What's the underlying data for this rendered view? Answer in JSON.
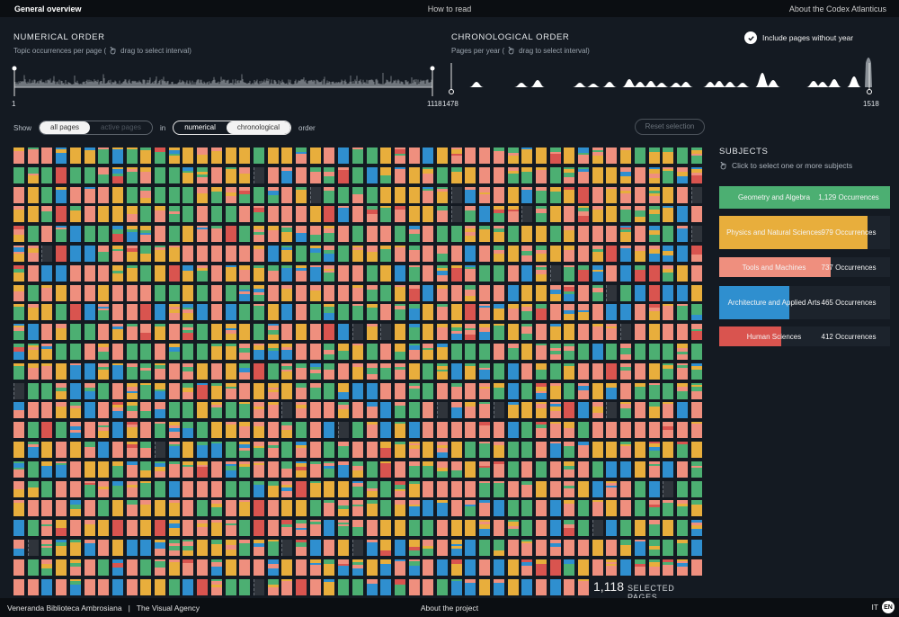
{
  "nav": {
    "left": "General overview",
    "center": "How to read",
    "right": "About the Codex Atlanticus"
  },
  "numerical": {
    "title": "NUMERICAL ORDER",
    "subtitle": "Topic occurrences per page (",
    "drag_hint": "drag to select interval)",
    "start_label": "1",
    "end_label": "1118"
  },
  "chronological": {
    "title": "CHRONOLOGICAL ORDER",
    "subtitle": "Pages per year (",
    "drag_hint": "drag to select interval)",
    "start_label": "1478",
    "end_label": "1518"
  },
  "include_toggle": {
    "label": "Include pages without year",
    "checked": true
  },
  "controls": {
    "show_label": "Show",
    "all_pages": "all pages",
    "active_pages": "active pages",
    "in_label": "in",
    "numerical": "numerical",
    "chronological": "chronological",
    "order_label": "order",
    "reset": "Reset selection"
  },
  "colors": {
    "geometry": "#4caf72",
    "physics": "#e8ae3c",
    "tools": "#ef8f7e",
    "architecture": "#2f8fcf",
    "human": "#d9544f",
    "none": "#2f343b",
    "bg": "#141a22"
  },
  "subjects": {
    "title": "SUBJECTS",
    "hint": "Click to select one or more subjects",
    "items": [
      {
        "name": "Geometry and Algebra",
        "count": "1,129 Occurrences",
        "value": 1129,
        "color_key": "geometry"
      },
      {
        "name": "Physics and Natural Sciences",
        "count": "979 Occurrences",
        "value": 979,
        "color_key": "physics"
      },
      {
        "name": "Tools and Machines",
        "count": "737 Occurrences",
        "value": 737,
        "color_key": "tools"
      },
      {
        "name": "Architecture and Applied Arts",
        "count": "465 Occurrences",
        "value": 465,
        "color_key": "architecture"
      },
      {
        "name": "Human Sciences",
        "count": "412 Occurrences",
        "value": 412,
        "color_key": "human"
      }
    ]
  },
  "selected": {
    "count": "1,118",
    "label": "SELECTED PAGES"
  },
  "footer": {
    "left": "Veneranda Biblioteca Ambrosiana   |   The Visual Agency",
    "center": "About the project",
    "lang_it": "IT",
    "lang_en": "EN"
  }
}
